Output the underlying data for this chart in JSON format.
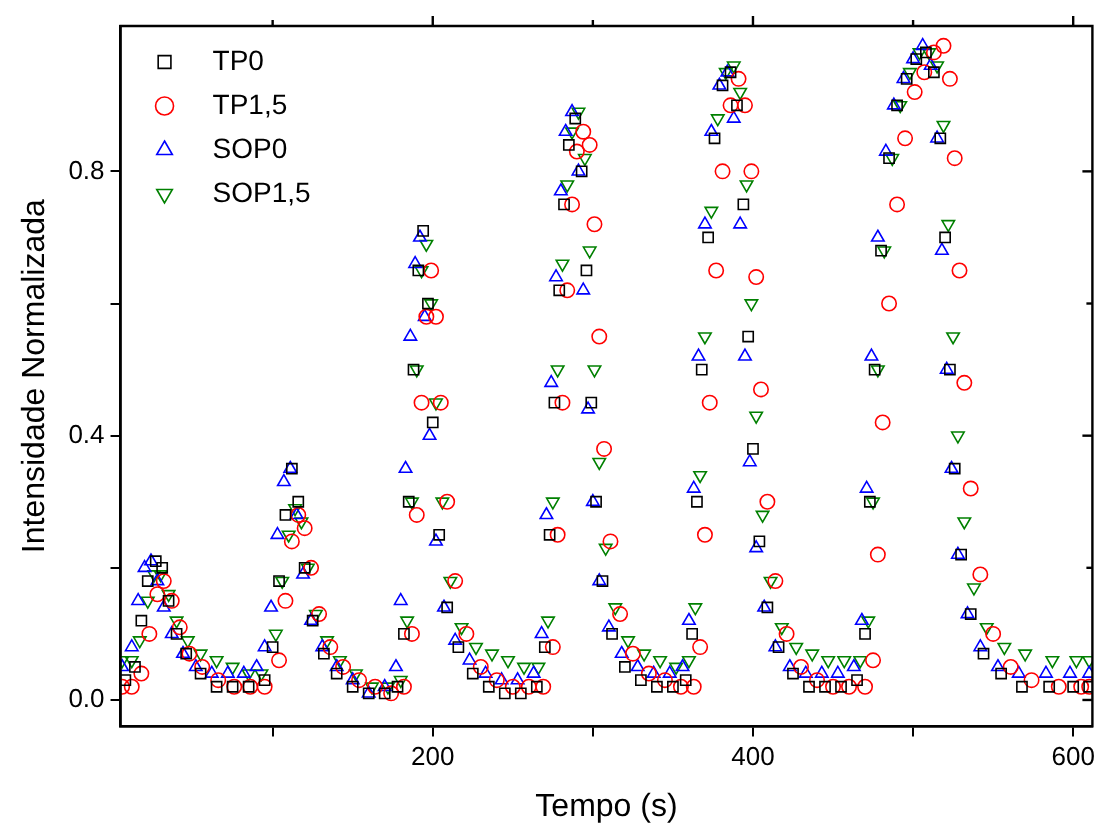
{
  "chart_data": {
    "type": "scatter",
    "xlabel": "Tempo (s)",
    "ylabel": "Intensidade Normalizada",
    "xlim": [
      5,
      612
    ],
    "xticks": [
      {
        "value": 100,
        "label": null
      },
      200,
      {
        "value": 300,
        "label": null
      },
      400,
      {
        "value": 500,
        "label": null
      },
      600
    ],
    "ylim": [
      -0.04,
      1.02
    ],
    "yticks": [
      {
        "value": 0,
        "label": "0.0"
      },
      {
        "value": 0.2,
        "label": null
      },
      0.4,
      {
        "value": 0.6,
        "label": null
      },
      0.8
    ],
    "grid": false,
    "legend": "top left",
    "series": [
      {
        "name": "TP0",
        "color": "#000000",
        "marker": "square",
        "x": [
          8,
          14,
          18,
          22,
          27,
          31,
          35,
          40,
          46,
          55,
          65,
          75,
          85,
          95,
          100,
          104,
          108,
          112,
          116,
          120,
          125,
          132,
          140,
          150,
          160,
          170,
          178,
          182,
          185,
          188,
          191,
          194,
          197,
          200,
          204,
          209,
          216,
          225,
          235,
          245,
          255,
          265,
          270,
          273,
          276,
          279,
          282,
          285,
          289,
          293,
          296,
          299,
          302,
          306,
          312,
          320,
          330,
          340,
          350,
          358,
          362,
          365,
          368,
          372,
          376,
          381,
          386,
          390,
          394,
          397,
          400,
          404,
          409,
          416,
          425,
          435,
          445,
          455,
          465,
          470,
          473,
          476,
          480,
          485,
          490,
          496,
          502,
          508,
          513,
          517,
          520,
          523,
          526,
          530,
          536,
          544,
          555,
          568,
          585,
          600,
          610
        ],
        "values": [
          0.03,
          0.05,
          0.12,
          0.18,
          0.21,
          0.2,
          0.15,
          0.1,
          0.07,
          0.04,
          0.02,
          0.02,
          0.02,
          0.03,
          0.08,
          0.18,
          0.28,
          0.35,
          0.3,
          0.2,
          0.12,
          0.07,
          0.04,
          0.02,
          0.01,
          0.01,
          0.02,
          0.1,
          0.3,
          0.5,
          0.65,
          0.71,
          0.6,
          0.42,
          0.25,
          0.14,
          0.08,
          0.04,
          0.02,
          0.01,
          0.01,
          0.02,
          0.08,
          0.25,
          0.45,
          0.62,
          0.75,
          0.84,
          0.88,
          0.8,
          0.65,
          0.45,
          0.3,
          0.18,
          0.1,
          0.05,
          0.03,
          0.02,
          0.02,
          0.03,
          0.1,
          0.3,
          0.5,
          0.7,
          0.85,
          0.93,
          0.95,
          0.9,
          0.75,
          0.55,
          0.38,
          0.24,
          0.14,
          0.08,
          0.04,
          0.02,
          0.02,
          0.02,
          0.03,
          0.1,
          0.3,
          0.5,
          0.68,
          0.82,
          0.9,
          0.94,
          0.97,
          0.98,
          0.95,
          0.85,
          0.7,
          0.5,
          0.35,
          0.22,
          0.13,
          0.07,
          0.04,
          0.02,
          0.02,
          0.02,
          0.02
        ]
      },
      {
        "name": "TP1,5",
        "color": "#ff0000",
        "marker": "circle",
        "x": [
          6,
          12,
          18,
          23,
          28,
          32,
          37,
          42,
          48,
          56,
          66,
          76,
          86,
          95,
          104,
          108,
          112,
          116,
          120,
          124,
          129,
          136,
          144,
          154,
          164,
          174,
          182,
          187,
          190,
          193,
          196,
          199,
          202,
          205,
          209,
          214,
          221,
          230,
          240,
          250,
          260,
          269,
          275,
          278,
          281,
          284,
          287,
          290,
          294,
          298,
          301,
          304,
          307,
          311,
          317,
          325,
          335,
          345,
          355,
          363,
          367,
          370,
          373,
          377,
          381,
          386,
          391,
          395,
          399,
          402,
          405,
          409,
          414,
          421,
          430,
          440,
          450,
          460,
          470,
          475,
          478,
          481,
          485,
          490,
          495,
          501,
          507,
          513,
          519,
          523,
          526,
          529,
          532,
          536,
          542,
          550,
          561,
          574,
          591,
          605,
          610
        ],
        "values": [
          0.02,
          0.02,
          0.04,
          0.1,
          0.16,
          0.18,
          0.15,
          0.11,
          0.07,
          0.05,
          0.03,
          0.02,
          0.02,
          0.02,
          0.06,
          0.15,
          0.24,
          0.28,
          0.26,
          0.2,
          0.13,
          0.08,
          0.05,
          0.03,
          0.02,
          0.01,
          0.02,
          0.1,
          0.28,
          0.45,
          0.58,
          0.65,
          0.58,
          0.45,
          0.3,
          0.18,
          0.1,
          0.05,
          0.03,
          0.02,
          0.02,
          0.02,
          0.08,
          0.25,
          0.45,
          0.62,
          0.75,
          0.83,
          0.86,
          0.84,
          0.72,
          0.55,
          0.38,
          0.24,
          0.13,
          0.07,
          0.04,
          0.03,
          0.02,
          0.02,
          0.08,
          0.25,
          0.45,
          0.65,
          0.8,
          0.9,
          0.94,
          0.9,
          0.8,
          0.64,
          0.47,
          0.3,
          0.18,
          0.1,
          0.05,
          0.03,
          0.02,
          0.02,
          0.02,
          0.06,
          0.22,
          0.42,
          0.6,
          0.75,
          0.85,
          0.92,
          0.95,
          0.98,
          0.99,
          0.94,
          0.82,
          0.65,
          0.48,
          0.32,
          0.19,
          0.1,
          0.05,
          0.03,
          0.02,
          0.02,
          0.02
        ]
      },
      {
        "name": "SOP0",
        "color": "#0000ff",
        "marker": "triangle",
        "x": [
          6,
          12,
          16,
          20,
          24,
          28,
          32,
          37,
          44,
          52,
          62,
          72,
          82,
          90,
          95,
          99,
          103,
          107,
          111,
          115,
          119,
          124,
          131,
          140,
          150,
          160,
          170,
          177,
          180,
          183,
          186,
          189,
          192,
          195,
          198,
          202,
          207,
          214,
          223,
          233,
          243,
          253,
          263,
          268,
          271,
          274,
          277,
          280,
          283,
          287,
          291,
          294,
          297,
          300,
          304,
          310,
          318,
          328,
          338,
          348,
          356,
          360,
          363,
          366,
          370,
          374,
          379,
          384,
          388,
          392,
          395,
          398,
          402,
          407,
          414,
          423,
          433,
          443,
          453,
          463,
          468,
          471,
          474,
          478,
          483,
          488,
          494,
          500,
          506,
          511,
          515,
          518,
          521,
          524,
          528,
          534,
          542,
          553,
          566,
          583,
          598,
          610
        ],
        "values": [
          0.05,
          0.08,
          0.15,
          0.2,
          0.21,
          0.18,
          0.14,
          0.1,
          0.07,
          0.05,
          0.04,
          0.04,
          0.04,
          0.05,
          0.08,
          0.14,
          0.25,
          0.33,
          0.35,
          0.28,
          0.19,
          0.12,
          0.08,
          0.05,
          0.03,
          0.01,
          0.02,
          0.05,
          0.15,
          0.35,
          0.55,
          0.66,
          0.7,
          0.58,
          0.4,
          0.24,
          0.14,
          0.09,
          0.06,
          0.04,
          0.03,
          0.03,
          0.04,
          0.1,
          0.28,
          0.48,
          0.64,
          0.77,
          0.86,
          0.89,
          0.8,
          0.62,
          0.44,
          0.3,
          0.18,
          0.11,
          0.07,
          0.05,
          0.04,
          0.04,
          0.05,
          0.12,
          0.32,
          0.52,
          0.72,
          0.86,
          0.93,
          0.95,
          0.88,
          0.72,
          0.52,
          0.36,
          0.23,
          0.14,
          0.08,
          0.05,
          0.04,
          0.04,
          0.04,
          0.05,
          0.12,
          0.32,
          0.52,
          0.7,
          0.83,
          0.9,
          0.94,
          0.97,
          0.99,
          0.96,
          0.85,
          0.68,
          0.5,
          0.35,
          0.22,
          0.13,
          0.08,
          0.05,
          0.04,
          0.04,
          0.04,
          0.04
        ]
      },
      {
        "name": "SOP1,5",
        "color": "#008000",
        "marker": "triangle-down",
        "x": [
          6,
          12,
          17,
          22,
          26,
          30,
          35,
          40,
          47,
          55,
          65,
          75,
          85,
          93,
          102,
          106,
          110,
          114,
          118,
          122,
          127,
          134,
          142,
          152,
          162,
          172,
          180,
          184,
          187,
          190,
          193,
          196,
          199,
          202,
          206,
          211,
          218,
          227,
          237,
          247,
          257,
          266,
          272,
          275,
          278,
          281,
          284,
          287,
          291,
          295,
          298,
          301,
          304,
          308,
          314,
          322,
          332,
          342,
          352,
          360,
          364,
          367,
          370,
          374,
          378,
          383,
          388,
          392,
          396,
          399,
          402,
          406,
          411,
          418,
          427,
          437,
          447,
          457,
          467,
          472,
          475,
          478,
          482,
          487,
          492,
          498,
          504,
          510,
          515,
          519,
          522,
          525,
          528,
          532,
          538,
          546,
          557,
          570,
          587,
          602,
          610
        ],
        "values": [
          0.06,
          0.06,
          0.09,
          0.15,
          0.19,
          0.19,
          0.16,
          0.12,
          0.09,
          0.07,
          0.06,
          0.05,
          0.04,
          0.04,
          0.1,
          0.18,
          0.25,
          0.29,
          0.27,
          0.2,
          0.13,
          0.09,
          0.06,
          0.04,
          0.02,
          0.02,
          0.03,
          0.12,
          0.3,
          0.5,
          0.65,
          0.69,
          0.6,
          0.45,
          0.3,
          0.18,
          0.11,
          0.08,
          0.07,
          0.06,
          0.05,
          0.05,
          0.12,
          0.3,
          0.5,
          0.66,
          0.78,
          0.86,
          0.89,
          0.82,
          0.68,
          0.5,
          0.36,
          0.23,
          0.14,
          0.09,
          0.07,
          0.06,
          0.05,
          0.06,
          0.14,
          0.34,
          0.55,
          0.74,
          0.88,
          0.95,
          0.96,
          0.92,
          0.78,
          0.6,
          0.43,
          0.28,
          0.18,
          0.11,
          0.08,
          0.07,
          0.06,
          0.06,
          0.06,
          0.12,
          0.3,
          0.5,
          0.68,
          0.82,
          0.9,
          0.95,
          0.98,
          0.98,
          0.96,
          0.87,
          0.72,
          0.55,
          0.4,
          0.27,
          0.17,
          0.11,
          0.08,
          0.07,
          0.06,
          0.06,
          0.06
        ]
      }
    ]
  }
}
